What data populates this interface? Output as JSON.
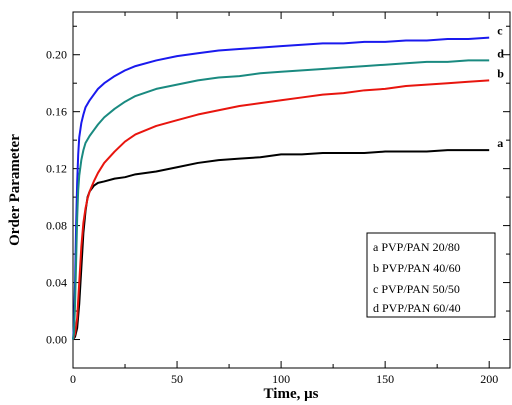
{
  "chart_data": {
    "type": "line",
    "title": "",
    "xlabel": "Time, μs",
    "ylabel": "Order Parameter",
    "xlim": [
      0,
      210
    ],
    "ylim": [
      -0.02,
      0.23
    ],
    "x_ticks": [
      0,
      50,
      100,
      150,
      200
    ],
    "x_tick_labels": [
      "0",
      "50",
      "100",
      "150",
      "200"
    ],
    "y_ticks": [
      0.0,
      0.04,
      0.08,
      0.12,
      0.16,
      0.2
    ],
    "y_tick_labels": [
      "0.00",
      "0.04",
      "0.08",
      "0.12",
      "0.16",
      "0.20"
    ],
    "grid": false,
    "legend_position": "bottom-right",
    "legend": [
      "a PVP/PAN 20/80",
      "b PVP/PAN 40/60",
      "c PVP/PAN 50/50",
      "d PVP/PAN 60/40"
    ],
    "series": [
      {
        "label": "a",
        "color": "#000000",
        "x": [
          0,
          1,
          2,
          3,
          4,
          5,
          6,
          7,
          8,
          10,
          12,
          15,
          20,
          25,
          30,
          40,
          50,
          60,
          70,
          80,
          90,
          100,
          110,
          120,
          130,
          140,
          150,
          160,
          170,
          180,
          190,
          200
        ],
        "y": [
          0.0,
          0.002,
          0.008,
          0.025,
          0.05,
          0.075,
          0.09,
          0.1,
          0.104,
          0.108,
          0.11,
          0.111,
          0.113,
          0.114,
          0.116,
          0.118,
          0.121,
          0.124,
          0.126,
          0.127,
          0.128,
          0.13,
          0.13,
          0.131,
          0.131,
          0.131,
          0.132,
          0.132,
          0.132,
          0.133,
          0.133,
          0.133
        ]
      },
      {
        "label": "b",
        "color": "#e8150e",
        "x": [
          0,
          1,
          2,
          3,
          4,
          5,
          6,
          7,
          8,
          10,
          12,
          15,
          20,
          25,
          30,
          40,
          50,
          60,
          70,
          80,
          90,
          100,
          110,
          120,
          130,
          140,
          150,
          160,
          170,
          180,
          190,
          200
        ],
        "y": [
          0.0,
          0.004,
          0.015,
          0.04,
          0.065,
          0.082,
          0.092,
          0.099,
          0.104,
          0.111,
          0.117,
          0.124,
          0.132,
          0.139,
          0.144,
          0.15,
          0.154,
          0.158,
          0.161,
          0.164,
          0.166,
          0.168,
          0.17,
          0.172,
          0.173,
          0.175,
          0.176,
          0.178,
          0.179,
          0.18,
          0.181,
          0.182
        ]
      },
      {
        "label": "c",
        "color": "#1a1aee",
        "x": [
          0,
          0.5,
          1,
          1.5,
          2,
          2.5,
          3,
          4,
          5,
          6,
          8,
          10,
          12,
          15,
          20,
          25,
          30,
          40,
          50,
          60,
          70,
          80,
          90,
          100,
          110,
          120,
          130,
          140,
          150,
          160,
          170,
          180,
          190,
          200
        ],
        "y": [
          0.0,
          0.01,
          0.04,
          0.08,
          0.11,
          0.13,
          0.142,
          0.152,
          0.158,
          0.163,
          0.168,
          0.172,
          0.176,
          0.18,
          0.185,
          0.189,
          0.192,
          0.196,
          0.199,
          0.201,
          0.203,
          0.204,
          0.205,
          0.206,
          0.207,
          0.208,
          0.208,
          0.209,
          0.209,
          0.21,
          0.21,
          0.211,
          0.211,
          0.212
        ]
      },
      {
        "label": "d",
        "color": "#1a8a80",
        "x": [
          0,
          0.5,
          1,
          1.5,
          2,
          2.5,
          3,
          4,
          5,
          6,
          8,
          10,
          12,
          15,
          20,
          25,
          30,
          40,
          50,
          60,
          70,
          80,
          90,
          100,
          110,
          120,
          130,
          140,
          150,
          160,
          170,
          180,
          190,
          200
        ],
        "y": [
          0.0,
          0.005,
          0.025,
          0.055,
          0.085,
          0.105,
          0.115,
          0.126,
          0.133,
          0.138,
          0.143,
          0.147,
          0.151,
          0.156,
          0.162,
          0.167,
          0.171,
          0.176,
          0.179,
          0.182,
          0.184,
          0.185,
          0.187,
          0.188,
          0.189,
          0.19,
          0.191,
          0.192,
          0.193,
          0.194,
          0.195,
          0.195,
          0.196,
          0.196
        ]
      }
    ]
  }
}
